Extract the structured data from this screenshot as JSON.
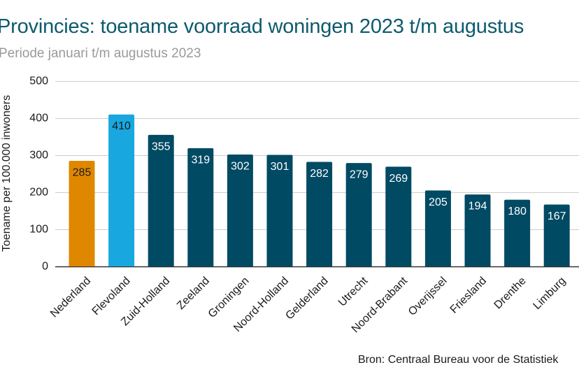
{
  "header": {
    "title": "Provincies: toename voorraad woningen 2023 t/m augustus",
    "subtitle": "Periode januari t/m augustus 2023"
  },
  "footer": {
    "source": "Bron: Centraal Bureau voor de Statistiek"
  },
  "chart_data": {
    "type": "bar",
    "title": "Provincies: toename voorraad woningen 2023 t/m augustus",
    "subtitle": "Periode januari t/m augustus 2023",
    "xlabel": "",
    "ylabel": "Toename per 100.000 inwoners",
    "ylim": [
      0,
      500
    ],
    "yticks": [
      0,
      100,
      200,
      300,
      400,
      500
    ],
    "grid": true,
    "categories": [
      "Nederland",
      "Flevoland",
      "Zuid-Holland",
      "Zeeland",
      "Groningen",
      "Noord-Holland",
      "Gelderland",
      "Utrecht",
      "Noord-Brabant",
      "Overijssel",
      "Friesland",
      "Drenthe",
      "Limburg"
    ],
    "values": [
      285,
      410,
      355,
      319,
      302,
      301,
      282,
      279,
      269,
      205,
      194,
      180,
      167
    ],
    "colors": [
      "#e08700",
      "#18a7df",
      "#004a63",
      "#004a63",
      "#004a63",
      "#004a63",
      "#004a63",
      "#004a63",
      "#004a63",
      "#004a63",
      "#004a63",
      "#004a63",
      "#004a63"
    ],
    "label_colors": [
      "#1a1a1a",
      "#1a1a1a",
      "#ffffff",
      "#ffffff",
      "#ffffff",
      "#ffffff",
      "#ffffff",
      "#ffffff",
      "#ffffff",
      "#ffffff",
      "#ffffff",
      "#ffffff",
      "#ffffff"
    ],
    "gridline_color": "#cccccc",
    "axis_color": "#333333"
  }
}
